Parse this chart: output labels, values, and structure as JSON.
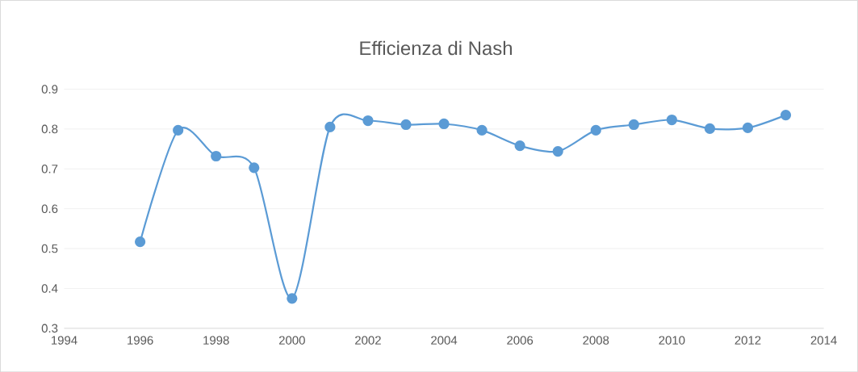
{
  "chart_data": {
    "type": "line",
    "title": "Efficienza di Nash",
    "x": [
      1996,
      1997,
      1998,
      1999,
      2000,
      2001,
      2002,
      2003,
      2004,
      2005,
      2006,
      2007,
      2008,
      2009,
      2010,
      2011,
      2012,
      2013
    ],
    "values": [
      0.517,
      0.797,
      0.732,
      0.703,
      0.375,
      0.805,
      0.821,
      0.811,
      0.813,
      0.797,
      0.758,
      0.744,
      0.797,
      0.811,
      0.823,
      0.801,
      0.803,
      0.835
    ],
    "color": "#5b9bd5",
    "marker": "circle",
    "xlim": [
      1994,
      2014
    ],
    "ylim": [
      0.3,
      0.9
    ],
    "xticks": [
      1994,
      1996,
      1998,
      2000,
      2002,
      2004,
      2006,
      2008,
      2010,
      2012,
      2014
    ],
    "yticks": [
      0.3,
      0.4,
      0.5,
      0.6,
      0.7,
      0.8,
      0.9
    ],
    "grid": "y"
  }
}
